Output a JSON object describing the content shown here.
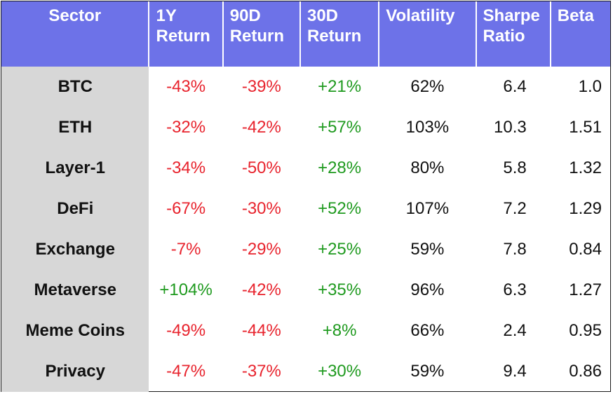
{
  "chart_data": {
    "type": "table",
    "colors": {
      "header_bg": "#6d72e8",
      "header_text": "#ffffff",
      "sector_bg": "#d7d7d7",
      "negative": "#e8232d",
      "positive": "#1f9a1f"
    },
    "columns": [
      {
        "key": "sector",
        "line1": "Sector",
        "line2": ""
      },
      {
        "key": "y1",
        "line1": "1Y",
        "line2": "Return"
      },
      {
        "key": "d90",
        "line1": "90D",
        "line2": "Return"
      },
      {
        "key": "d30",
        "line1": "30D",
        "line2": "Return"
      },
      {
        "key": "volatility",
        "line1": "Volatility",
        "line2": ""
      },
      {
        "key": "sharpe",
        "line1": "Sharpe",
        "line2": "Ratio"
      },
      {
        "key": "beta",
        "line1": "Beta",
        "line2": ""
      }
    ],
    "rows": [
      {
        "sector": "BTC",
        "y1": "-43%",
        "d90": "-39%",
        "d30": "+21%",
        "volatility": "62%",
        "sharpe": "6.4",
        "beta": "1.0"
      },
      {
        "sector": "ETH",
        "y1": "-32%",
        "d90": "-42%",
        "d30": "+57%",
        "volatility": "103%",
        "sharpe": "10.3",
        "beta": "1.51"
      },
      {
        "sector": "Layer-1",
        "y1": "-34%",
        "d90": "-50%",
        "d30": "+28%",
        "volatility": "80%",
        "sharpe": "5.8",
        "beta": "1.32"
      },
      {
        "sector": "DeFi",
        "y1": "-67%",
        "d90": "-30%",
        "d30": "+52%",
        "volatility": "107%",
        "sharpe": "7.2",
        "beta": "1.29"
      },
      {
        "sector": "Exchange",
        "y1": "-7%",
        "d90": "-29%",
        "d30": "+25%",
        "volatility": "59%",
        "sharpe": "7.8",
        "beta": "0.84"
      },
      {
        "sector": "Metaverse",
        "y1": "+104%",
        "d90": "-42%",
        "d30": "+35%",
        "volatility": "96%",
        "sharpe": "6.3",
        "beta": "1.27"
      },
      {
        "sector": "Meme Coins",
        "y1": "-49%",
        "d90": "-44%",
        "d30": "+8%",
        "volatility": "66%",
        "sharpe": "2.4",
        "beta": "0.95"
      },
      {
        "sector": "Privacy",
        "y1": "-47%",
        "d90": "-37%",
        "d30": "+30%",
        "volatility": "59%",
        "sharpe": "9.4",
        "beta": "0.86"
      }
    ]
  }
}
